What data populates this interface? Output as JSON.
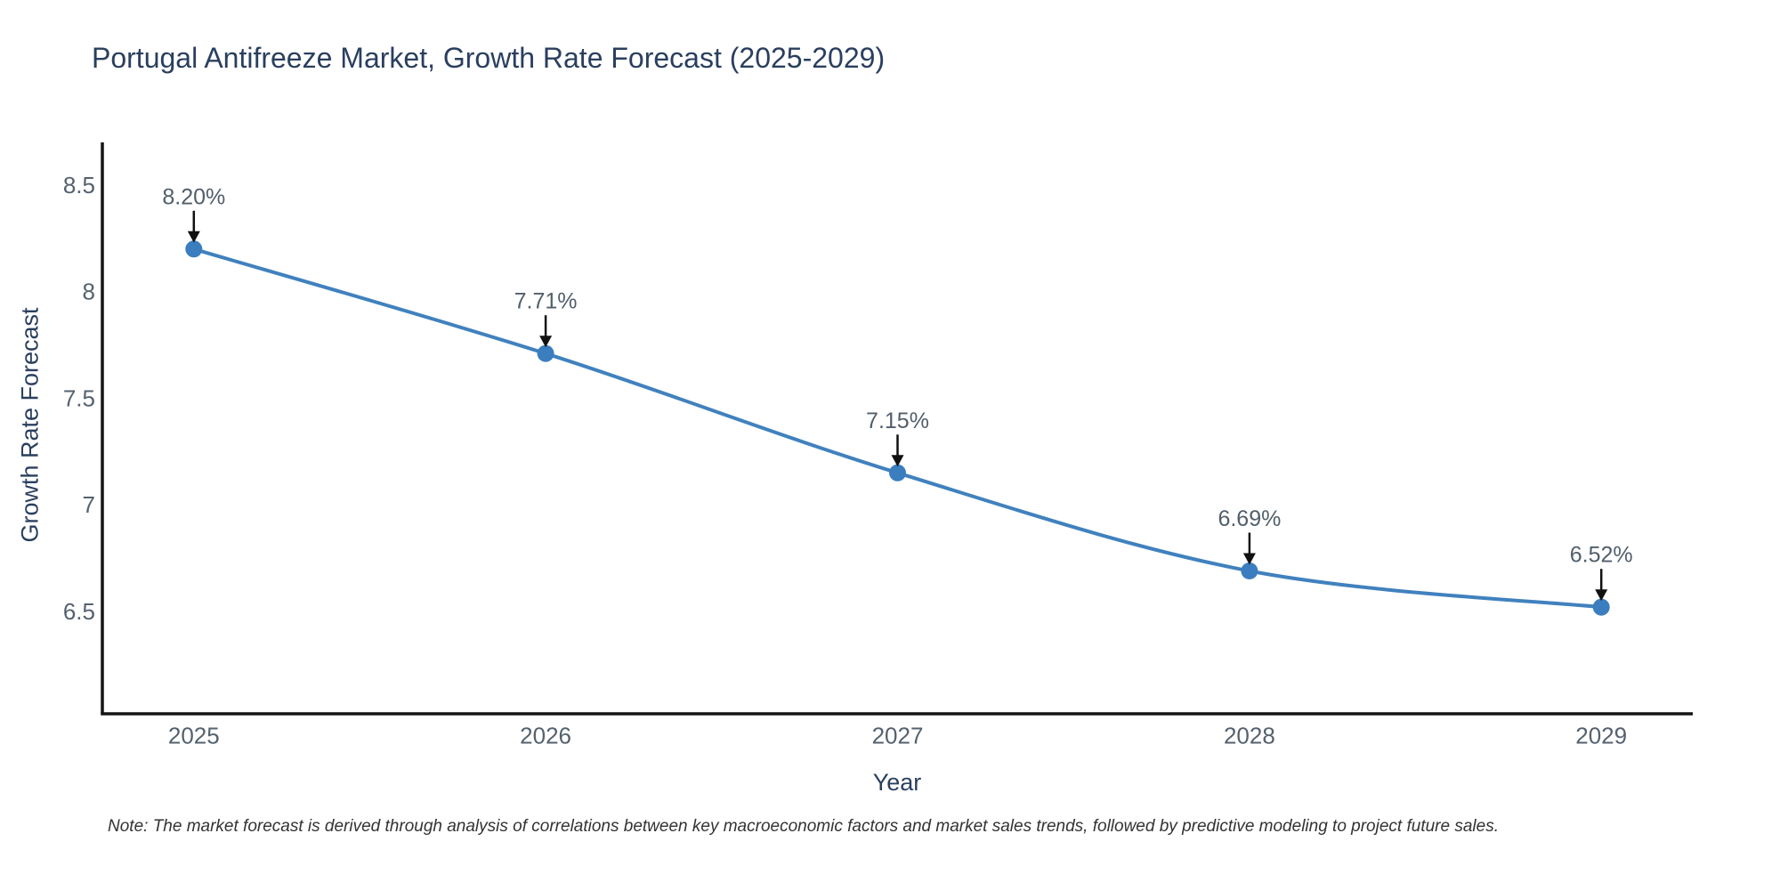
{
  "page": {
    "background": "#ffffff"
  },
  "chart_data": {
    "type": "line",
    "title": "Portugal Antifreeze Market, Growth Rate Forecast (2025-2029)",
    "xlabel": "Year",
    "ylabel": "Growth Rate Forecast",
    "x": [
      2025,
      2026,
      2027,
      2028,
      2029
    ],
    "y": [
      8.2,
      7.71,
      7.15,
      6.69,
      6.52
    ],
    "point_labels": [
      "8.20%",
      "7.71%",
      "7.15%",
      "6.69%",
      "6.52%"
    ],
    "xtick_labels": [
      "2025",
      "2026",
      "2027",
      "2028",
      "2029"
    ],
    "yticks": [
      6.5,
      7,
      7.5,
      8,
      8.5
    ],
    "ytick_labels": [
      "6.5",
      "7",
      "7.5",
      "8",
      "8.5"
    ],
    "xlim": [
      2024.74,
      2029.26
    ],
    "ylim": [
      6.02,
      8.7
    ],
    "grid": false,
    "legend": "none",
    "line_shape": "spline",
    "annotations_have_arrows": true,
    "colors": {
      "line": "#4081BE",
      "marker": "#3A7EBF",
      "axis": "#141414",
      "arrow": "#111111",
      "title": "#2A3F5F",
      "tick": "#55616F",
      "point_label": "#515E6B",
      "note": "#333333"
    }
  },
  "note": {
    "text": "Note: The market forecast is derived through analysis of correlations between key macroeconomic factors and market sales trends, followed by predictive modeling to project future sales."
  }
}
